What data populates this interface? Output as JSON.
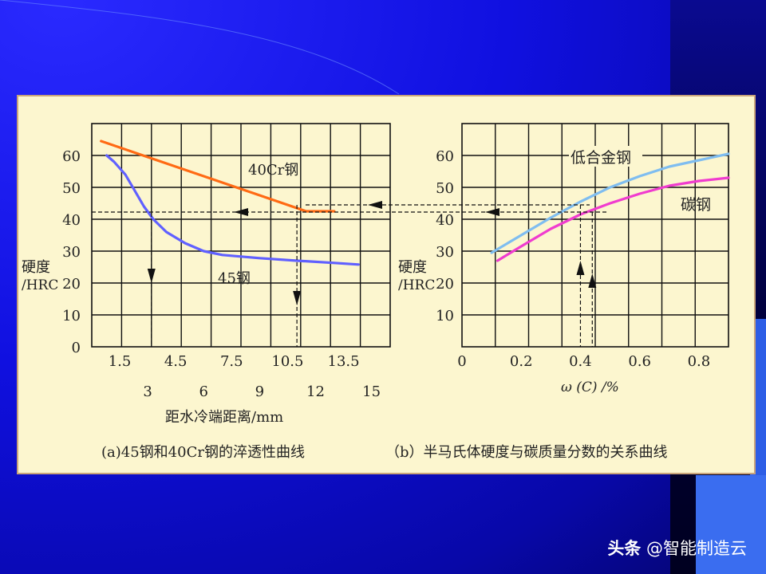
{
  "watermark": {
    "brand": "头条",
    "account": "@智能制造云"
  },
  "chart_data": [
    {
      "type": "line",
      "caption": "(a)45钢和40Cr钢的淬透性曲线",
      "ylabel_line1": "硬度",
      "ylabel_line2": "/HRC",
      "xlabel": "距水冷端距离/mm",
      "xlim": [
        0,
        16
      ],
      "ylim": [
        0,
        70
      ],
      "yticks": [
        "0",
        "10",
        "20",
        "30",
        "40",
        "50",
        "60"
      ],
      "xticks_top": [
        "1.5",
        "4.5",
        "7.5",
        "10.5",
        "13.5"
      ],
      "xticks_bottom": [
        "3",
        "6",
        "9",
        "12",
        "15"
      ],
      "grid": true,
      "series": [
        {
          "name": "40Cr钢",
          "color": "#ff6a14",
          "x": [
            0.5,
            3,
            6,
            9,
            11.5,
            12.2,
            13
          ],
          "y": [
            64.5,
            59.5,
            53.5,
            47.5,
            42.5,
            42.5,
            42.5
          ]
        },
        {
          "name": "45钢",
          "color": "#6060ff",
          "x": [
            0.8,
            1.2,
            1.8,
            2.3,
            2.8,
            3.3,
            4,
            5,
            6,
            7,
            9,
            11,
            13,
            14.3
          ],
          "y": [
            60,
            58,
            54,
            49,
            44,
            40,
            36,
            32.5,
            30,
            28.8,
            27.8,
            27,
            26.3,
            25.8
          ]
        }
      ]
    },
    {
      "type": "line",
      "caption": "（b）半马氏体硬度与碳质量分数的关系曲线",
      "ylabel_line1": "硬度",
      "ylabel_line2": "/HRC",
      "xlabel": "ω (C) /%",
      "xlim": [
        0,
        0.9
      ],
      "ylim": [
        0,
        70
      ],
      "yticks": [
        "10",
        "20",
        "30",
        "40",
        "50",
        "60"
      ],
      "xticks": [
        "0",
        "0.2",
        "0.4",
        "0.6",
        "0.8"
      ],
      "grid": true,
      "series": [
        {
          "name": "低合金钢",
          "color": "#7fbdf0",
          "x": [
            0.1,
            0.2,
            0.3,
            0.4,
            0.5,
            0.6,
            0.7,
            0.8,
            0.9
          ],
          "y": [
            29.5,
            35,
            40.5,
            45.5,
            50,
            53.5,
            56.5,
            58.5,
            60.5
          ]
        },
        {
          "name": "碳钢",
          "color": "#f03ccf",
          "x": [
            0.12,
            0.2,
            0.3,
            0.4,
            0.5,
            0.6,
            0.7,
            0.8,
            0.9
          ],
          "y": [
            27,
            31.5,
            37,
            41.5,
            45,
            48,
            50.5,
            52,
            53
          ]
        }
      ]
    }
  ]
}
